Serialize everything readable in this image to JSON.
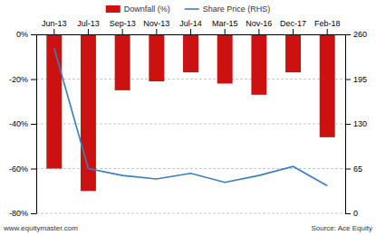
{
  "chart_data": {
    "type": "bar",
    "categories": [
      "Jun-13",
      "Jul-13",
      "Sep-13",
      "Nov-13",
      "Jul-14",
      "Mar-15",
      "Nov-16",
      "Dec-17",
      "Feb-18"
    ],
    "series": [
      {
        "name": "Downfall (%)",
        "type": "bar",
        "color": "#cc1111",
        "values": [
          -60,
          -70,
          -25,
          -21,
          -17,
          -22,
          -27,
          -17,
          -46
        ]
      },
      {
        "name": "Share Price (RHS)",
        "type": "line",
        "color": "#3a7ebf",
        "axis": "y2",
        "values": [
          240,
          65,
          55,
          50,
          58,
          45,
          55,
          68,
          40
        ]
      }
    ],
    "ylim": [
      -80,
      0
    ],
    "yticks": [
      {
        "value": 0,
        "label": "0%"
      },
      {
        "value": -20,
        "label": "-20%"
      },
      {
        "value": -40,
        "label": "-40%"
      },
      {
        "value": -60,
        "label": "-60%"
      },
      {
        "value": -80,
        "label": "-80%"
      }
    ],
    "y2lim": [
      0,
      260
    ],
    "y2ticks": [
      0,
      65,
      130,
      195,
      260
    ],
    "grid": true,
    "legend": "top",
    "annotations": [
      "www.equitymaster.com",
      "Source:  Ace Equity"
    ]
  }
}
